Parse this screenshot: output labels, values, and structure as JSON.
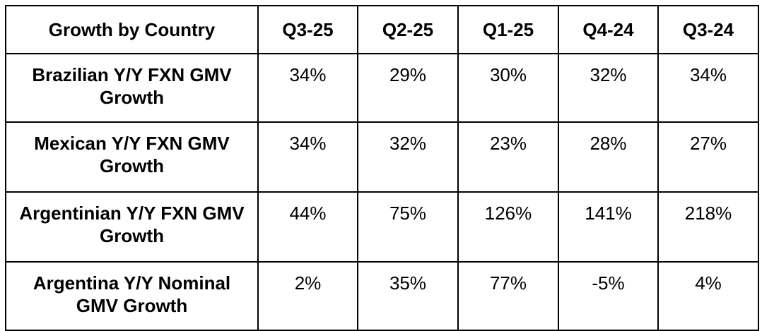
{
  "table": {
    "header": [
      "Growth by Country",
      "Q3-25",
      "Q2-25",
      "Q1-25",
      "Q4-24",
      "Q3-24"
    ],
    "rows": [
      [
        "Brazilian Y/Y FXN GMV Growth",
        "34%",
        "29%",
        "30%",
        "32%",
        "34%"
      ],
      [
        "Mexican Y/Y FXN GMV Growth",
        "34%",
        "32%",
        "23%",
        "28%",
        "27%"
      ],
      [
        "Argentinian Y/Y FXN GMV Growth",
        "44%",
        "75%",
        "126%",
        "141%",
        "218%"
      ],
      [
        "Argentina Y/Y Nominal GMV Growth",
        "2%",
        "35%",
        "77%",
        "-5%",
        "4%"
      ]
    ]
  }
}
